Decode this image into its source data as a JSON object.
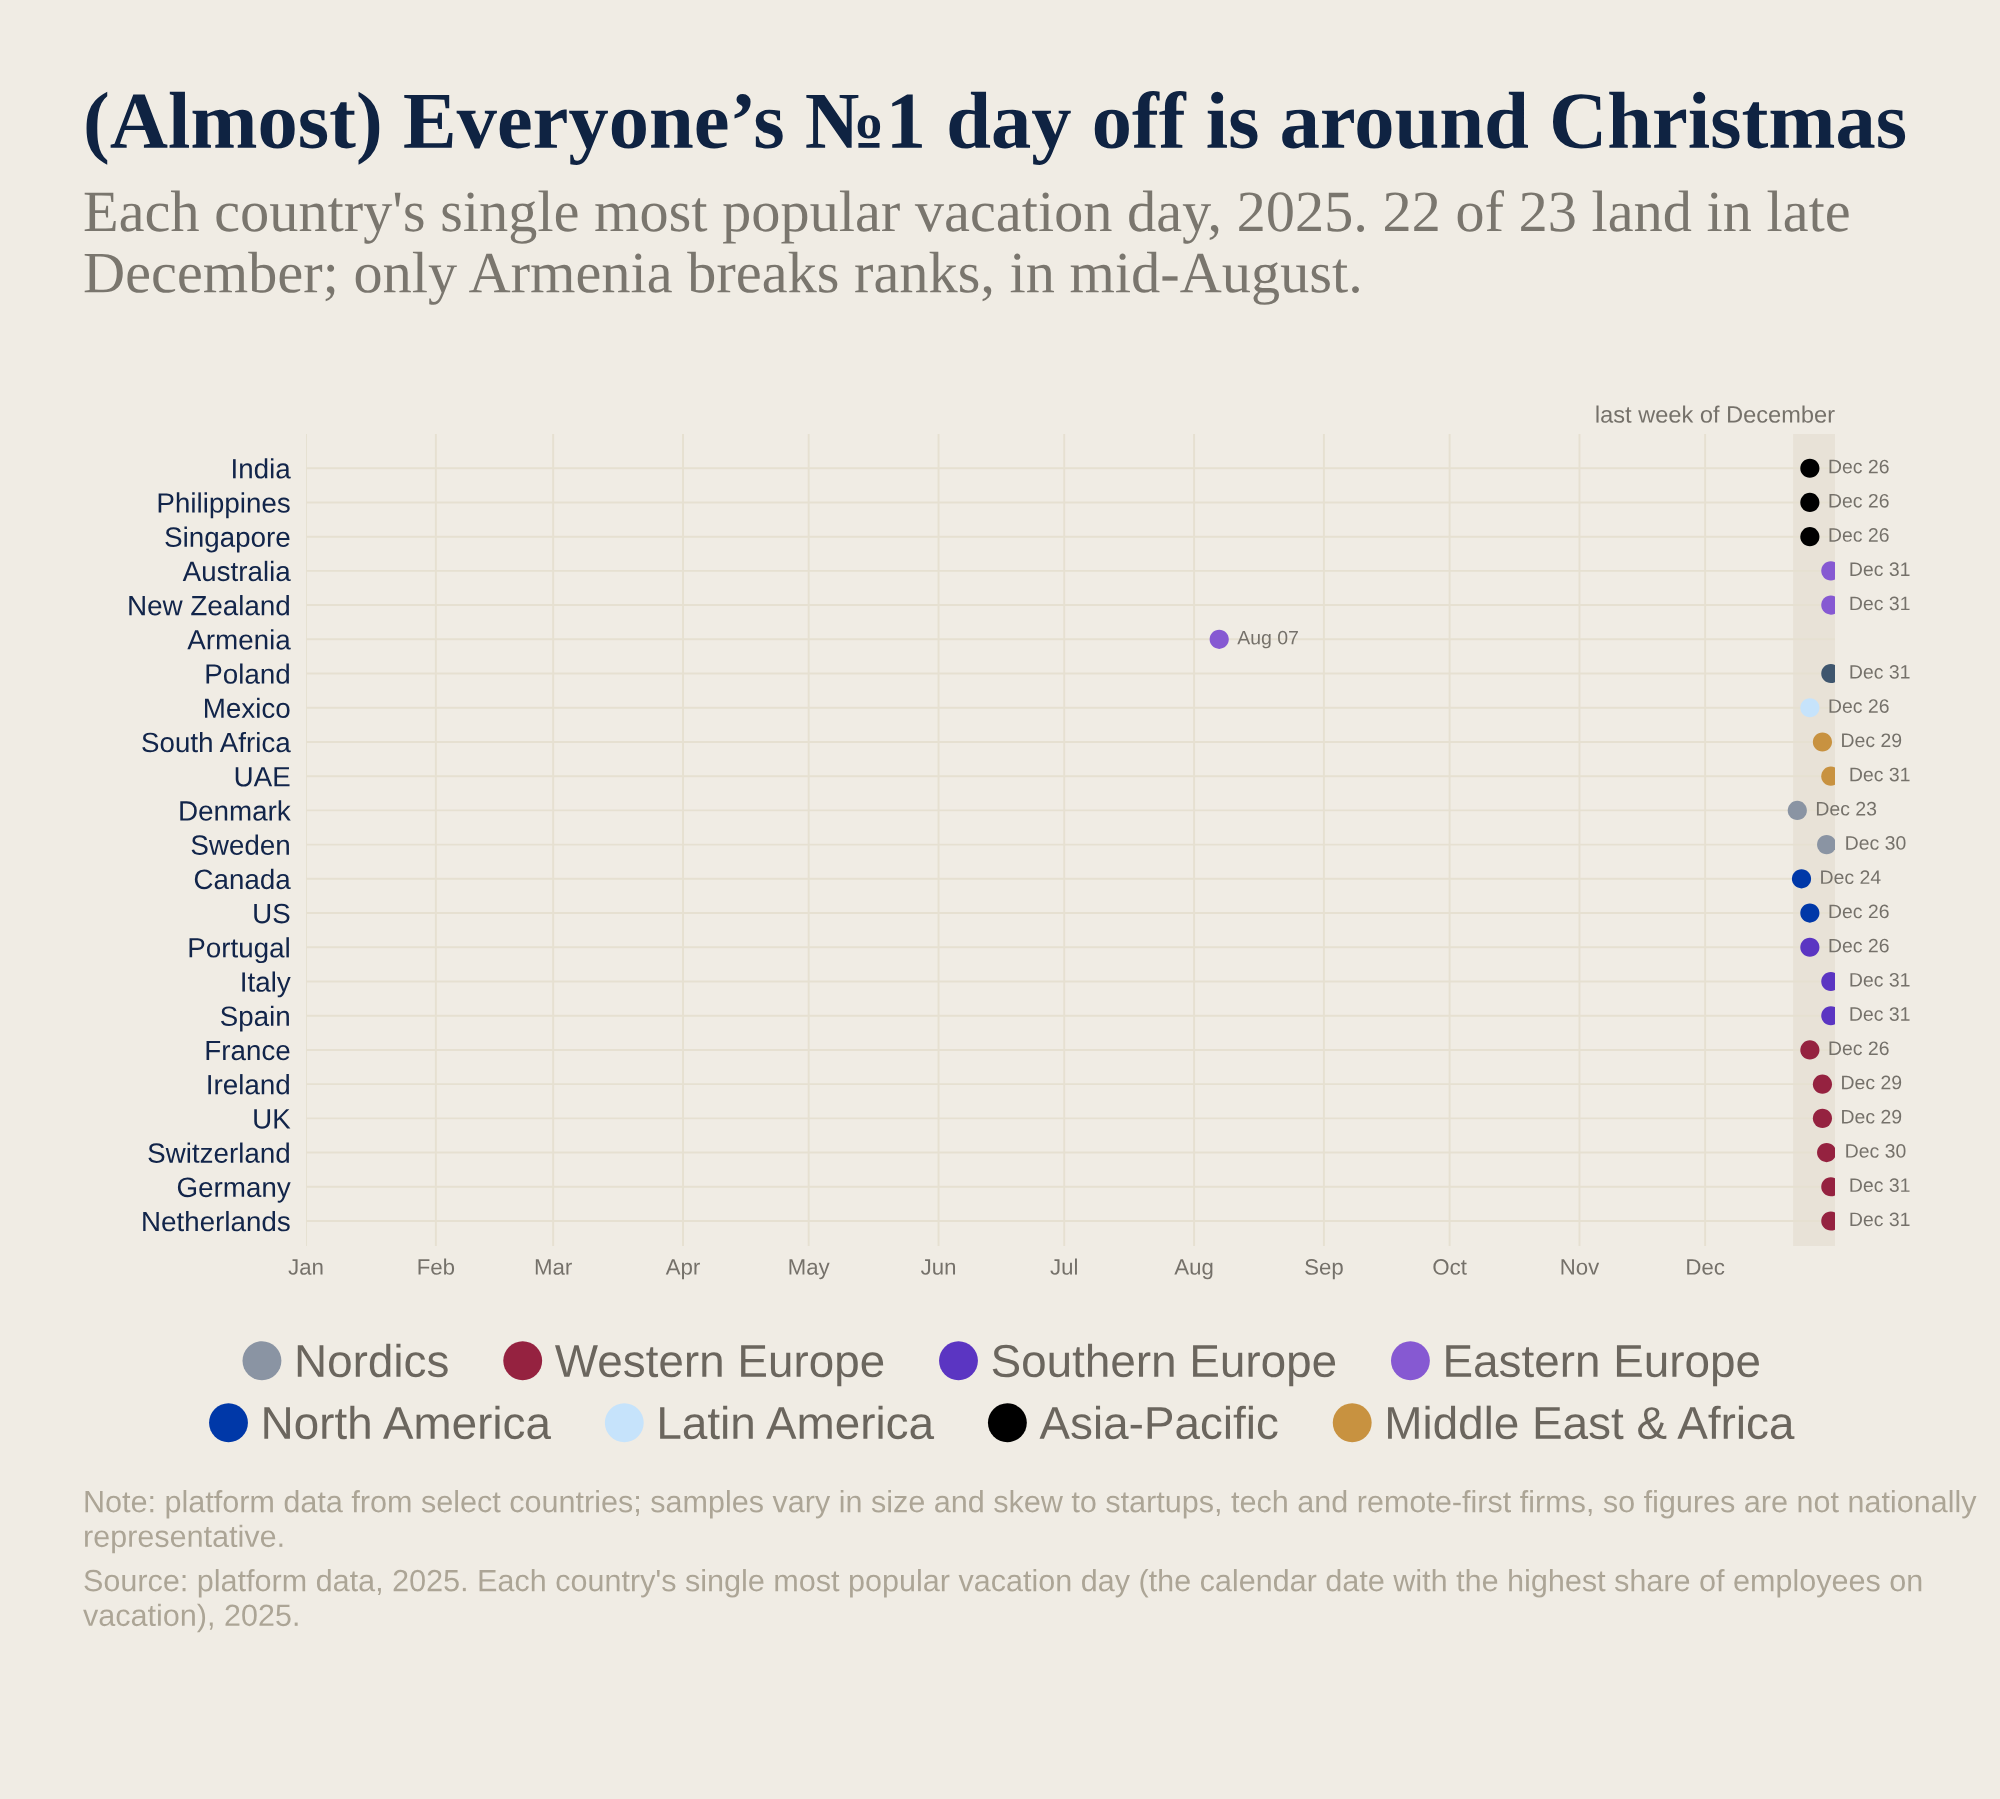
{
  "chart_data": {
    "type": "scatter",
    "orientation": "horizontal",
    "title": "(Almost) Everyone’s №1 day off is around Christmas",
    "subtitle": "Each country's single most popular vacation day, 2025. 22 of 23 land in late December; only Armenia breaks ranks, in mid-August.",
    "categories": [
      "India",
      "Philippines",
      "Singapore",
      "Australia",
      "New Zealand",
      "Armenia",
      "Poland",
      "Mexico",
      "South Africa",
      "UAE",
      "Denmark",
      "Sweden",
      "Canada",
      "US",
      "Portugal",
      "Italy",
      "Spain",
      "France",
      "Ireland",
      "UK",
      "Switzerland",
      "Germany",
      "Netherlands"
    ],
    "series": [
      {
        "name": "Nordics",
        "color": "#8a94a3",
        "values": [
          null,
          null,
          null,
          null,
          null,
          null,
          null,
          null,
          null,
          null,
          20445,
          20452,
          null,
          null,
          null,
          null,
          null,
          null,
          null,
          null,
          null,
          null,
          null
        ],
        "value_labels": [
          null,
          null,
          null,
          null,
          null,
          null,
          null,
          null,
          null,
          null,
          "Dec 23",
          "Dec 30",
          null,
          null,
          null,
          null,
          null,
          null,
          null,
          null,
          null,
          null,
          null
        ]
      },
      {
        "name": "Western Europe",
        "color": "#952240",
        "values": [
          null,
          null,
          null,
          null,
          null,
          null,
          null,
          null,
          null,
          null,
          null,
          null,
          null,
          null,
          null,
          null,
          null,
          20448,
          20451,
          20451,
          20452,
          20453,
          20453
        ],
        "value_labels": [
          null,
          null,
          null,
          null,
          null,
          null,
          null,
          null,
          null,
          null,
          null,
          null,
          null,
          null,
          null,
          null,
          null,
          "Dec 26",
          "Dec 29",
          "Dec 29",
          "Dec 30",
          "Dec 31",
          "Dec 31"
        ]
      },
      {
        "name": "Southern Europe",
        "color": "#5b35c2",
        "values": [
          null,
          null,
          null,
          null,
          null,
          null,
          null,
          null,
          null,
          null,
          null,
          null,
          null,
          null,
          20448,
          20453,
          20453,
          null,
          null,
          null,
          null,
          null,
          null
        ],
        "value_labels": [
          null,
          null,
          null,
          null,
          null,
          null,
          null,
          null,
          null,
          null,
          null,
          null,
          null,
          null,
          "Dec 26",
          "Dec 31",
          "Dec 31",
          null,
          null,
          null,
          null,
          null,
          null
        ]
      },
      {
        "name": "Eastern Europe",
        "color": "#8659d2",
        "values": [
          null,
          null,
          null,
          20453,
          20453,
          20307,
          null,
          null,
          null,
          null,
          null,
          null,
          null,
          null,
          null,
          null,
          null,
          null,
          null,
          null,
          null,
          null,
          null
        ],
        "value_labels": [
          null,
          null,
          null,
          "Dec 31",
          "Dec 31",
          "Aug 07",
          null,
          null,
          null,
          null,
          null,
          null,
          null,
          null,
          null,
          null,
          null,
          null,
          null,
          null,
          null,
          null,
          null
        ]
      },
      {
        "name": "North America",
        "color": "#0038a8",
        "values": [
          null,
          null,
          null,
          null,
          null,
          null,
          null,
          null,
          null,
          null,
          null,
          null,
          20446,
          20448,
          null,
          null,
          null,
          null,
          null,
          null,
          null,
          null,
          null
        ],
        "value_labels": [
          null,
          null,
          null,
          null,
          null,
          null,
          null,
          null,
          null,
          null,
          null,
          null,
          "Dec 24",
          "Dec 26",
          null,
          null,
          null,
          null,
          null,
          null,
          null,
          null,
          null
        ]
      },
      {
        "name": "Latin America",
        "color": "#c6e3fb",
        "values": [
          null,
          null,
          null,
          null,
          null,
          null,
          null,
          20448,
          null,
          null,
          null,
          null,
          null,
          null,
          null,
          null,
          null,
          null,
          null,
          null,
          null,
          null,
          null
        ],
        "value_labels": [
          null,
          null,
          null,
          null,
          null,
          null,
          null,
          "Dec 26",
          null,
          null,
          null,
          null,
          null,
          null,
          null,
          null,
          null,
          null,
          null,
          null,
          null,
          null,
          null
        ]
      },
      {
        "name": "Asia-Pacific",
        "color": "#000000",
        "values": [
          20448,
          20448,
          20448,
          null,
          null,
          null,
          null,
          null,
          null,
          null,
          null,
          null,
          null,
          null,
          null,
          null,
          null,
          null,
          null,
          null,
          null,
          null,
          null
        ],
        "value_labels": [
          "Dec 26",
          "Dec 26",
          "Dec 26",
          null,
          null,
          null,
          null,
          null,
          null,
          null,
          null,
          null,
          null,
          null,
          null,
          null,
          null,
          null,
          null,
          null,
          null,
          null,
          null
        ]
      },
      {
        "name": "Middle East & Africa",
        "color": "#c89240",
        "values": [
          null,
          null,
          null,
          null,
          null,
          null,
          null,
          null,
          20451,
          20453,
          null,
          null,
          null,
          null,
          null,
          null,
          null,
          null,
          null,
          null,
          null,
          null,
          null
        ],
        "value_labels": [
          null,
          null,
          null,
          null,
          null,
          null,
          null,
          null,
          "Dec 29",
          "Dec 31",
          null,
          null,
          null,
          null,
          null,
          null,
          null,
          null,
          null,
          null,
          null,
          null,
          null
        ]
      },
      {
        "color": "#3f566e",
        "values": [
          null,
          null,
          null,
          null,
          null,
          null,
          20453,
          null,
          null,
          null,
          null,
          null,
          null,
          null,
          null,
          null,
          null,
          null,
          null,
          null,
          null,
          null,
          null
        ],
        "value_labels": [
          null,
          null,
          null,
          null,
          null,
          null,
          "Dec 31",
          null,
          null,
          null,
          null,
          null,
          null,
          null,
          null,
          null,
          null,
          null,
          null,
          null,
          null,
          null,
          null
        ]
      }
    ],
    "xlim": [
      "2025-01-01",
      "2026-01-01"
    ],
    "xticks": [
      {
        "value": "2025-01-01",
        "label": "Jan"
      },
      {
        "value": "2025-02-01",
        "label": "Feb"
      },
      {
        "value": "2025-03-01",
        "label": "Mar"
      },
      {
        "value": "2025-04-01",
        "label": "Apr"
      },
      {
        "value": "2025-05-01",
        "label": "May"
      },
      {
        "value": "2025-06-01",
        "label": "Jun"
      },
      {
        "value": "2025-07-01",
        "label": "Jul"
      },
      {
        "value": "2025-08-01",
        "label": "Aug"
      },
      {
        "value": "2025-09-01",
        "label": "Sep"
      },
      {
        "value": "2025-10-01",
        "label": "Oct"
      },
      {
        "value": "2025-11-01",
        "label": "Nov"
      },
      {
        "value": "2025-12-01",
        "label": "Dec"
      }
    ],
    "bands": [
      {
        "axis": "x",
        "from": "2025-12-22",
        "to": "2026-01-01",
        "label": "last week of December",
        "color": "#e8e2d7"
      }
    ],
    "grid": true,
    "legend": "bottom",
    "marker": "circle",
    "annotations": [
      "Note: platform data from select countries; samples vary in size and skew to startups, tech and remote-first firms, so figures are not nationally representative.",
      "Source: platform data, 2025. Each country's single most popular vacation day (the calendar date with the highest share of employees on vacation), 2025."
    ]
  }
}
